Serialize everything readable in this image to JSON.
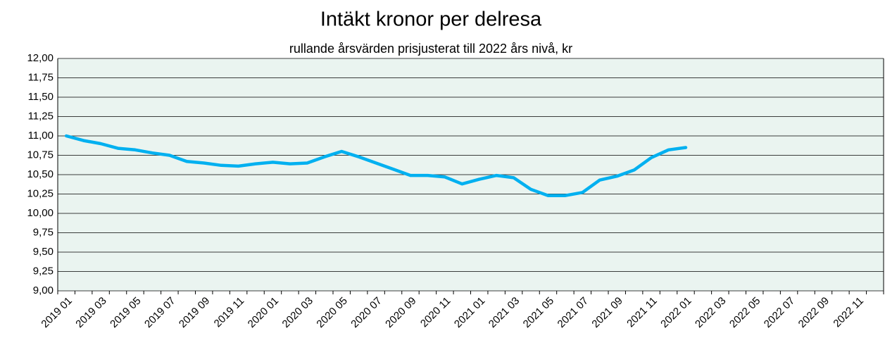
{
  "chart_data": {
    "type": "line",
    "title": "Intäkt kronor per delresa",
    "subtitle": "rullande årsvärden prisjusterat till 2022 års nivå, kr",
    "categories": [
      "2019 01",
      null,
      "2019 03",
      null,
      "2019 05",
      null,
      "2019 07",
      null,
      "2019 09",
      null,
      "2019 11",
      null,
      "2020 01",
      null,
      "2020 03",
      null,
      "2020 05",
      null,
      "2020 07",
      null,
      "2020 09",
      null,
      "2020 11",
      null,
      "2021 01",
      null,
      "2021 03",
      null,
      "2021 05",
      null,
      "2021 07",
      null,
      "2021 09",
      null,
      "2021 11",
      null,
      "2022 01",
      null,
      "2022 03",
      null,
      "2022 05",
      null,
      "2022 07",
      null,
      "2022 09",
      null,
      "2022 11",
      null
    ],
    "values": [
      11.0,
      10.94,
      10.9,
      10.84,
      10.82,
      10.78,
      10.75,
      10.67,
      10.65,
      10.62,
      10.61,
      10.64,
      10.66,
      10.64,
      10.65,
      10.73,
      10.8,
      10.73,
      10.65,
      10.57,
      10.49,
      10.49,
      10.47,
      10.38,
      10.44,
      10.49,
      10.46,
      10.31,
      10.23,
      10.23,
      10.27,
      10.43,
      10.48,
      10.56,
      10.72,
      10.82,
      10.85,
      null,
      null,
      null,
      null,
      null,
      null,
      null,
      null,
      null,
      null,
      null
    ],
    "color": "#00b0f0",
    "ylim": [
      9,
      12
    ],
    "yticks": [
      {
        "value": 9,
        "label": "9,00"
      },
      {
        "value": 9.25,
        "label": "9,25"
      },
      {
        "value": 9.5,
        "label": "9,50"
      },
      {
        "value": 9.75,
        "label": "9,75"
      },
      {
        "value": 10,
        "label": "10,00"
      },
      {
        "value": 10.25,
        "label": "10,25"
      },
      {
        "value": 10.5,
        "label": "10,50"
      },
      {
        "value": 10.75,
        "label": "10,75"
      },
      {
        "value": 11,
        "label": "11,00"
      },
      {
        "value": 11.25,
        "label": "11,25"
      },
      {
        "value": 11.5,
        "label": "11,50"
      },
      {
        "value": 11.75,
        "label": "11,75"
      },
      {
        "value": 12,
        "label": "12,00"
      }
    ],
    "grid": true
  }
}
